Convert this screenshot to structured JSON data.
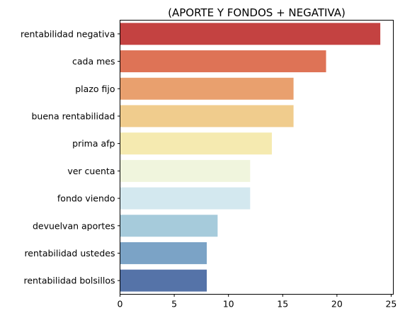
{
  "chart_data": {
    "type": "bar",
    "orientation": "horizontal",
    "title": "(APORTE Y FONDOS + NEGATIVA)",
    "xlabel": "",
    "ylabel": "",
    "categories": [
      "rentabilidad negativa",
      "cada mes",
      "plazo fijo",
      "buena rentabilidad",
      "prima afp",
      "ver cuenta",
      "fondo viendo",
      "devuelvan aportes",
      "rentabilidad ustedes",
      "rentabilidad bolsillos"
    ],
    "values": [
      24,
      19,
      16,
      16,
      14,
      12,
      12,
      9,
      8,
      8
    ],
    "colors": [
      "#c44241",
      "#de7356",
      "#e9a06e",
      "#f0cc8d",
      "#f5eab0",
      "#f0f5dd",
      "#d3e8ef",
      "#a6cbdb",
      "#7ba3c6",
      "#5573a8"
    ],
    "xlim": [
      0,
      25.2
    ],
    "xticks": [
      0,
      5,
      10,
      15,
      20,
      25
    ],
    "grid": false,
    "legend": "none"
  }
}
